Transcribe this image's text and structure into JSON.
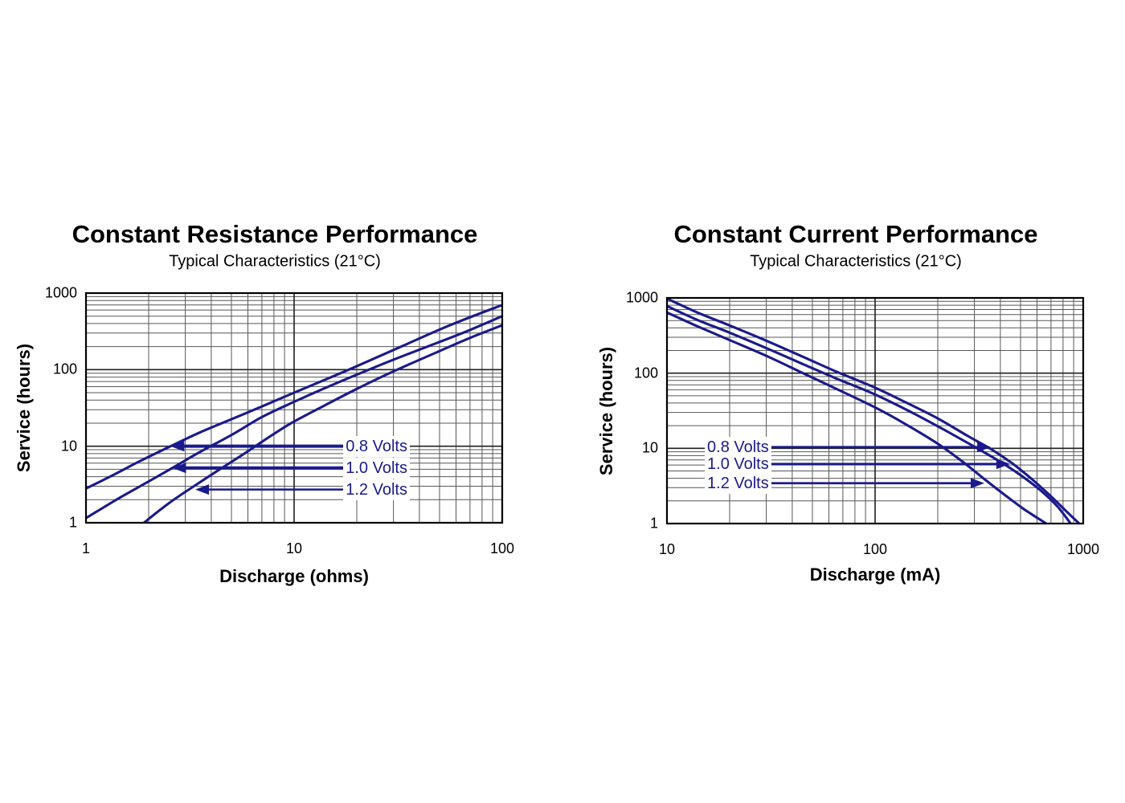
{
  "colors": {
    "curve": "#1a1a8c",
    "annotation_text": "#1a1a8c",
    "grid_minor": "#575757",
    "grid_major": "#1f1f1f",
    "axis_border": "#000000",
    "text": "#000000",
    "background": "#ffffff"
  },
  "chart_data": [
    {
      "type": "line",
      "title": "Constant Resistance Performance",
      "subtitle": "Typical Characteristics (21°C)",
      "xlabel": "Discharge (ohms)",
      "ylabel": "Service (hours)",
      "xscale": "log",
      "yscale": "log",
      "xlim": [
        1,
        100
      ],
      "ylim": [
        1,
        1000
      ],
      "grid": "major+minor log grid, both axes",
      "legend_position": "inline arrows",
      "xticks": [
        {
          "value": 1,
          "label": "1"
        },
        {
          "value": 10,
          "label": "10"
        },
        {
          "value": 100,
          "label": "100"
        }
      ],
      "yticks": [
        {
          "value": 1,
          "label": "1"
        },
        {
          "value": 10,
          "label": "10"
        },
        {
          "value": 100,
          "label": "100"
        },
        {
          "value": 1000,
          "label": "1000"
        }
      ],
      "series": [
        {
          "name": "0.8 Volts",
          "points": [
            [
              1,
              2.8
            ],
            [
              1.35,
              4.2
            ],
            [
              1.8,
              6.3
            ],
            [
              2.55,
              10
            ],
            [
              3.5,
              15
            ],
            [
              5,
              22.5
            ],
            [
              7,
              33
            ],
            [
              10,
              50
            ],
            [
              18,
              98
            ],
            [
              32,
              195
            ],
            [
              56,
              380
            ],
            [
              100,
              700
            ]
          ]
        },
        {
          "name": "1.0 Volts",
          "points": [
            [
              1,
              1.15
            ],
            [
              1.4,
              2.0
            ],
            [
              1.9,
              3.2
            ],
            [
              2.57,
              5.1
            ],
            [
              3.5,
              8.3
            ],
            [
              5,
              14
            ],
            [
              7,
              24
            ],
            [
              10,
              38
            ],
            [
              14,
              57
            ],
            [
              20,
              86
            ],
            [
              30,
              135
            ],
            [
              50,
              230
            ],
            [
              70,
              330
            ],
            [
              100,
              500
            ]
          ]
        },
        {
          "name": "1.2 Volts",
          "points": [
            [
              1.9,
              1
            ],
            [
              2.5,
              1.8
            ],
            [
              3.3,
              3.0
            ],
            [
              4.5,
              5.2
            ],
            [
              6,
              8.6
            ],
            [
              8,
              14.5
            ],
            [
              10,
              21
            ],
            [
              14,
              34
            ],
            [
              20,
              56
            ],
            [
              30,
              95
            ],
            [
              50,
              175
            ],
            [
              70,
              260
            ],
            [
              100,
              380
            ]
          ]
        }
      ],
      "annotations": [
        {
          "label": "0.8 Volts",
          "arrow_y": 10,
          "arrow_tip_x": 2.55,
          "text_x": 17.7,
          "direction": "left",
          "shaft_width": 4
        },
        {
          "label": "1.0 Volts",
          "arrow_y": 5.2,
          "arrow_tip_x": 2.6,
          "text_x": 17.7,
          "direction": "left",
          "shaft_width": 4
        },
        {
          "label": "1.2 Volts",
          "arrow_y": 2.72,
          "arrow_tip_x": 3.35,
          "text_x": 17.7,
          "direction": "left",
          "shaft_width": 2.5
        }
      ]
    },
    {
      "type": "line",
      "title": "Constant Current Performance",
      "subtitle": "Typical Characteristics (21°C)",
      "xlabel": "Discharge (mA)",
      "ylabel": "Service (hours)",
      "xscale": "log",
      "yscale": "log",
      "xlim": [
        10,
        1000
      ],
      "ylim": [
        1,
        1000
      ],
      "grid": "major+minor log grid, both axes",
      "legend_position": "inline arrows",
      "xticks": [
        {
          "value": 10,
          "label": "10"
        },
        {
          "value": 100,
          "label": "100"
        },
        {
          "value": 1000,
          "label": "1000"
        }
      ],
      "yticks": [
        {
          "value": 1,
          "label": "1"
        },
        {
          "value": 10,
          "label": "10"
        },
        {
          "value": 100,
          "label": "100"
        },
        {
          "value": 1000,
          "label": "1000"
        }
      ],
      "series": [
        {
          "name": "0.8 Volts",
          "points": [
            [
              10,
              980
            ],
            [
              14,
              640
            ],
            [
              20,
              430
            ],
            [
              30,
              270
            ],
            [
              45,
              165
            ],
            [
              65,
              105
            ],
            [
              100,
              64
            ],
            [
              140,
              41
            ],
            [
              200,
              25
            ],
            [
              280,
              14.5
            ],
            [
              360,
              9.8
            ],
            [
              460,
              6.2
            ],
            [
              560,
              4.0
            ],
            [
              700,
              2.3
            ],
            [
              820,
              1.5
            ],
            [
              950,
              1.02
            ]
          ]
        },
        {
          "name": "1.0 Volts",
          "points": [
            [
              10,
              780
            ],
            [
              14,
              510
            ],
            [
              20,
              345
            ],
            [
              30,
              215
            ],
            [
              45,
              132
            ],
            [
              65,
              85
            ],
            [
              100,
              52
            ],
            [
              150,
              30
            ],
            [
              220,
              17
            ],
            [
              300,
              10.5
            ],
            [
              400,
              6.6
            ],
            [
              500,
              4.4
            ],
            [
              620,
              2.8
            ],
            [
              750,
              1.7
            ],
            [
              870,
              1.0
            ]
          ]
        },
        {
          "name": "1.2 Volts",
          "points": [
            [
              10,
              640
            ],
            [
              14,
              420
            ],
            [
              20,
              275
            ],
            [
              30,
              170
            ],
            [
              45,
              100
            ],
            [
              65,
              62
            ],
            [
              100,
              35
            ],
            [
              140,
              21
            ],
            [
              200,
              11.5
            ],
            [
              270,
              6.3
            ],
            [
              335,
              3.9
            ],
            [
              420,
              2.4
            ],
            [
              520,
              1.55
            ],
            [
              664,
              1.0
            ]
          ]
        }
      ],
      "annotations": [
        {
          "label": "0.8 Volts",
          "arrow_y": 10.4,
          "arrow_tip_x": 360,
          "text_x": 15.6,
          "direction": "right",
          "shaft_width": 2.8
        },
        {
          "label": "1.0 Volts",
          "arrow_y": 6.2,
          "arrow_tip_x": 445,
          "text_x": 15.6,
          "direction": "right",
          "shaft_width": 2.8
        },
        {
          "label": "1.2 Volts",
          "arrow_y": 3.44,
          "arrow_tip_x": 335,
          "text_x": 15.6,
          "direction": "right",
          "shaft_width": 2.8
        }
      ]
    }
  ]
}
